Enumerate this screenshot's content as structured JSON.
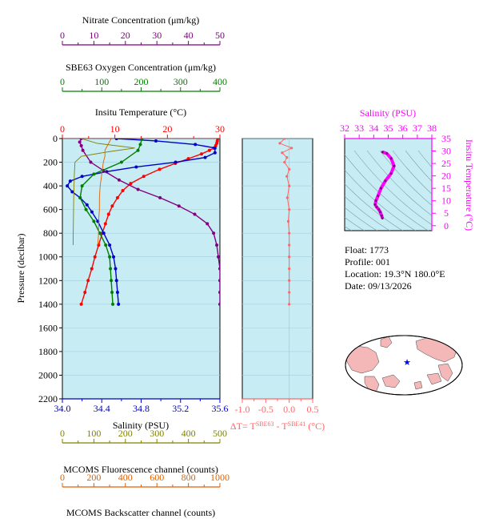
{
  "chart_data": [
    {
      "type": "line",
      "panel": "main-profile",
      "ylabel": "Pressure (decibar)",
      "ylim": [
        2200,
        0
      ],
      "yticks": [
        0,
        200,
        400,
        600,
        800,
        1000,
        1200,
        1400,
        1600,
        1800,
        2000,
        2200
      ],
      "axes": {
        "nitrate": {
          "label": "Nitrate Concentration (μm/kg)",
          "min": 0,
          "max": 50,
          "ticks": [
            0,
            10,
            20,
            30,
            40,
            50
          ],
          "color": "#800080"
        },
        "oxygen": {
          "label": "SBE63 Oxygen Concentration (μm/kg)",
          "min": 0,
          "max": 400,
          "ticks": [
            0,
            100,
            200,
            300,
            400
          ],
          "color": "#008000"
        },
        "temperature": {
          "label": "Insitu Temperature (°C)",
          "min": 0,
          "max": 30,
          "ticks": [
            0,
            10,
            20,
            30
          ],
          "color": "#ff0000"
        },
        "salinity": {
          "label": "Salinity (PSU)",
          "min": 34.0,
          "max": 35.6,
          "ticks": [
            "34.0",
            "34.4",
            "34.8",
            "35.2",
            "35.6"
          ],
          "color": "#0000cc"
        },
        "fluorescence": {
          "label": "MCOMS Fluorescence channel (counts)",
          "min": 0,
          "max": 500,
          "ticks": [
            0,
            100,
            200,
            300,
            400,
            500
          ],
          "color": "#808000"
        },
        "backscatter": {
          "label": "MCOMS Backscatter channel (counts)",
          "min": 0,
          "max": 1000,
          "ticks": [
            0,
            200,
            400,
            600,
            800,
            1000
          ],
          "color": "#e06000"
        }
      },
      "series": [
        {
          "axis": "temperature",
          "color": "#ff0000",
          "points": [
            [
              29.6,
              0
            ],
            [
              29.5,
              20
            ],
            [
              29.4,
              40
            ],
            [
              29.2,
              60
            ],
            [
              28.8,
              80
            ],
            [
              28.0,
              100
            ],
            [
              26.5,
              130
            ],
            [
              24.0,
              170
            ],
            [
              21.5,
              210
            ],
            [
              18.5,
              260
            ],
            [
              15.5,
              320
            ],
            [
              13.0,
              380
            ],
            [
              11.5,
              440
            ],
            [
              10.5,
              500
            ],
            [
              9.5,
              570
            ],
            [
              8.8,
              640
            ],
            [
              8.2,
              720
            ],
            [
              7.6,
              800
            ],
            [
              6.9,
              900
            ],
            [
              6.2,
              1000
            ],
            [
              5.6,
              1100
            ],
            [
              4.9,
              1200
            ],
            [
              4.3,
              1300
            ],
            [
              3.6,
              1400
            ]
          ]
        },
        {
          "axis": "salinity",
          "color": "#0000cc",
          "points": [
            [
              34.55,
              0
            ],
            [
              34.95,
              20
            ],
            [
              35.35,
              50
            ],
            [
              35.55,
              80
            ],
            [
              35.55,
              120
            ],
            [
              35.45,
              160
            ],
            [
              35.15,
              200
            ],
            [
              34.75,
              240
            ],
            [
              34.45,
              280
            ],
            [
              34.2,
              320
            ],
            [
              34.08,
              360
            ],
            [
              34.05,
              400
            ],
            [
              34.1,
              450
            ],
            [
              34.18,
              500
            ],
            [
              34.25,
              560
            ],
            [
              34.3,
              620
            ],
            [
              34.36,
              700
            ],
            [
              34.42,
              800
            ],
            [
              34.48,
              900
            ],
            [
              34.52,
              1000
            ],
            [
              34.54,
              1100
            ],
            [
              34.55,
              1200
            ],
            [
              34.56,
              1300
            ],
            [
              34.57,
              1400
            ]
          ]
        },
        {
          "axis": "nitrate",
          "color": "#800080",
          "points": [
            [
              6,
              0
            ],
            [
              5.5,
              30
            ],
            [
              6,
              60
            ],
            [
              6.5,
              100
            ],
            [
              9,
              200
            ],
            [
              13,
              270
            ],
            [
              18,
              350
            ],
            [
              24,
              430
            ],
            [
              31,
              500
            ],
            [
              37,
              570
            ],
            [
              42,
              640
            ],
            [
              46,
              720
            ],
            [
              48,
              800
            ],
            [
              49,
              900
            ],
            [
              49.5,
              1000
            ],
            [
              50,
              1100
            ],
            [
              50,
              1200
            ],
            [
              50,
              1300
            ],
            [
              50,
              1400
            ]
          ]
        },
        {
          "axis": "oxygen",
          "color": "#008000",
          "points": [
            [
              202,
              0
            ],
            [
              198,
              50
            ],
            [
              192,
              100
            ],
            [
              150,
              200
            ],
            [
              80,
              300
            ],
            [
              50,
              400
            ],
            [
              45,
              500
            ],
            [
              60,
              600
            ],
            [
              80,
              700
            ],
            [
              95,
              800
            ],
            [
              110,
              900
            ],
            [
              120,
              1000
            ],
            [
              122,
              1100
            ],
            [
              124,
              1200
            ],
            [
              126,
              1300
            ],
            [
              128,
              1400
            ]
          ]
        },
        {
          "axis": "fluorescence",
          "color": "#808000",
          "points": [
            [
              60,
              0
            ],
            [
              110,
              40
            ],
            [
              230,
              80
            ],
            [
              150,
              110
            ],
            [
              60,
              150
            ],
            [
              40,
              200
            ],
            [
              38,
              300
            ],
            [
              36,
              500
            ],
            [
              35,
              700
            ],
            [
              34,
              900
            ]
          ]
        },
        {
          "axis": "backscatter",
          "color": "#e06000",
          "points": [
            [
              310,
              0
            ],
            [
              290,
              50
            ],
            [
              270,
              100
            ],
            [
              270,
              150
            ],
            [
              260,
              200
            ],
            [
              250,
              300
            ],
            [
              240,
              400
            ],
            [
              235,
              500
            ],
            [
              235,
              600
            ],
            [
              230,
              700
            ],
            [
              230,
              800
            ],
            [
              225,
              900
            ]
          ]
        }
      ]
    },
    {
      "type": "line",
      "panel": "delta-t",
      "xlabel": "ΔT= T^SBE63 - T^SBE41 (°C)",
      "xlim": [
        -1.0,
        0.5
      ],
      "xticks": [
        "-1.0",
        "-0.5",
        "0.0",
        "0.5"
      ],
      "color": "#ff6666",
      "series": [
        {
          "name": "",
          "points": [
            [
              -0.1,
              0
            ],
            [
              -0.2,
              40
            ],
            [
              0.05,
              80
            ],
            [
              -0.15,
              120
            ],
            [
              -0.05,
              160
            ],
            [
              -0.1,
              200
            ],
            [
              0.0,
              260
            ],
            [
              -0.05,
              320
            ],
            [
              0.0,
              400
            ],
            [
              -0.04,
              500
            ],
            [
              0.0,
              600
            ],
            [
              -0.02,
              700
            ],
            [
              0.0,
              800
            ],
            [
              0.0,
              900
            ],
            [
              0.0,
              1000
            ],
            [
              0.0,
              1100
            ],
            [
              0.0,
              1200
            ],
            [
              0.0,
              1300
            ],
            [
              0.0,
              1400
            ]
          ]
        }
      ]
    },
    {
      "type": "line",
      "panel": "ts-diagram",
      "xlabel": "Salinity (PSU)",
      "ylabel": "Insitu Temperature (°C)",
      "xlim": [
        32,
        38
      ],
      "ylim": [
        -2,
        35
      ],
      "xticks": [
        32,
        33,
        34,
        35,
        36,
        37,
        38
      ],
      "yticks": [
        0,
        5,
        10,
        15,
        20,
        25,
        30,
        35
      ],
      "color": "#ff00ff",
      "series": [
        {
          "name": "",
          "points": [
            [
              34.6,
              29.6
            ],
            [
              34.9,
              29.0
            ],
            [
              35.2,
              27.0
            ],
            [
              35.4,
              24.0
            ],
            [
              35.2,
              21.0
            ],
            [
              34.8,
              18.0
            ],
            [
              34.5,
              15.0
            ],
            [
              34.3,
              12.0
            ],
            [
              34.15,
              10.0
            ],
            [
              34.1,
              8.5
            ],
            [
              34.2,
              7.5
            ],
            [
              34.35,
              6.5
            ],
            [
              34.45,
              5.5
            ],
            [
              34.55,
              4.0
            ],
            [
              34.6,
              3.0
            ]
          ]
        }
      ]
    }
  ],
  "info": {
    "float": "Float:  1773",
    "profile": "Profile:  001",
    "location": "Location:  19.3°N  180.0°E",
    "date": "Date:  09/13/2026"
  },
  "map": {
    "marker_color": "#0000ff",
    "land_color": "#f4b8b8",
    "ocean_color": "#ffffff"
  },
  "colors": {
    "plot_bg": "#c8ecf4",
    "grid": "#a0d0dc"
  }
}
